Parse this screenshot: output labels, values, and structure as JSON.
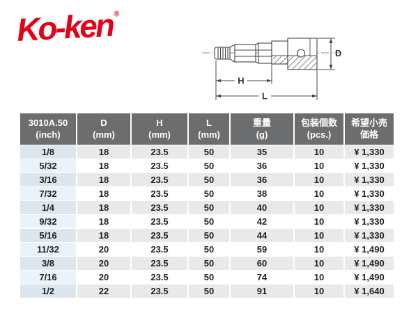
{
  "brand": {
    "logo_text": "Ko-ken",
    "registered_mark": "®"
  },
  "diagram": {
    "labels": {
      "d": "D",
      "h": "H",
      "l": "L"
    }
  },
  "table": {
    "columns": [
      {
        "id": "size",
        "label": "3010A.50",
        "sublabel": "(inch)"
      },
      {
        "id": "d",
        "label": "D",
        "sublabel": "(mm)"
      },
      {
        "id": "h",
        "label": "H",
        "sublabel": "(mm)"
      },
      {
        "id": "l",
        "label": "L",
        "sublabel": "(mm)"
      },
      {
        "id": "weight",
        "label": "重量",
        "sublabel": "(g)"
      },
      {
        "id": "pack",
        "label": "包装個数",
        "sublabel": "(pcs.)"
      },
      {
        "id": "price",
        "label": "希望小売",
        "sublabel": "価格"
      }
    ],
    "rows": [
      [
        "1/8",
        "18",
        "23.5",
        "50",
        "35",
        "10",
        "¥ 1,330"
      ],
      [
        "5/32",
        "18",
        "23.5",
        "50",
        "36",
        "10",
        "¥ 1,330"
      ],
      [
        "3/16",
        "18",
        "23.5",
        "50",
        "36",
        "10",
        "¥ 1,330"
      ],
      [
        "7/32",
        "18",
        "23.5",
        "50",
        "38",
        "10",
        "¥ 1,330"
      ],
      [
        "1/4",
        "18",
        "23.5",
        "50",
        "40",
        "10",
        "¥ 1,330"
      ],
      [
        "9/32",
        "18",
        "23.5",
        "50",
        "42",
        "10",
        "¥ 1,330"
      ],
      [
        "5/16",
        "18",
        "23.5",
        "50",
        "44",
        "10",
        "¥ 1,330"
      ],
      [
        "11/32",
        "20",
        "23.5",
        "50",
        "59",
        "10",
        "¥ 1,490"
      ],
      [
        "3/8",
        "20",
        "23.5",
        "50",
        "60",
        "10",
        "¥ 1,490"
      ],
      [
        "7/16",
        "20",
        "23.5",
        "50",
        "74",
        "10",
        "¥ 1,490"
      ],
      [
        "1/2",
        "22",
        "23.5",
        "50",
        "91",
        "10",
        "¥ 1,640"
      ]
    ]
  },
  "colors": {
    "brand_red": "#e50019",
    "header_bg": "#6c6d6e",
    "header_text": "#ffffff",
    "row_odd_bg": "#e8e9ea",
    "row_even_bg": "#ffffff",
    "size_col_odd_bg": "#dce6ef",
    "size_col_even_bg": "#ebf2f9"
  }
}
